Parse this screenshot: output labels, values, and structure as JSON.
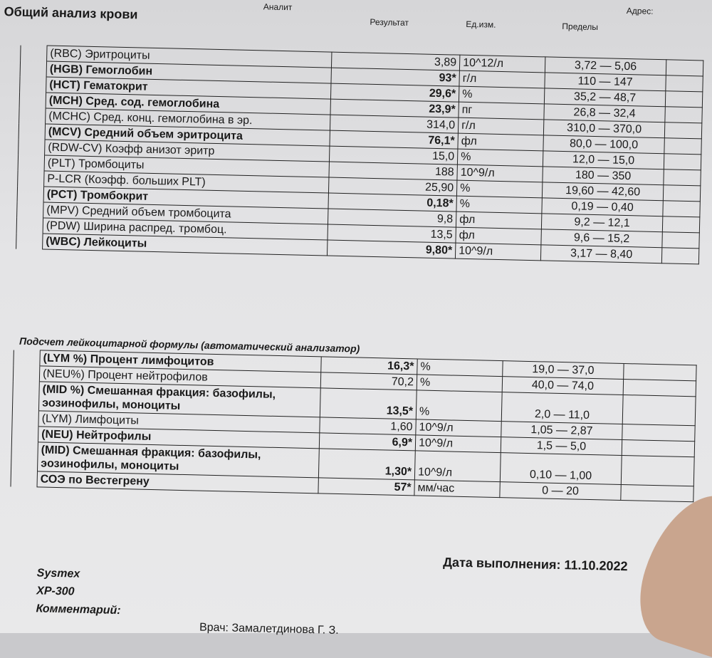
{
  "header": {
    "analyte": "Аналит",
    "result": "Результат",
    "unit": "Ед.изм.",
    "range": "Пределы",
    "address": "Адрес:"
  },
  "section_title": "Общий анализ крови",
  "cbc_rows": [
    {
      "label": "(RBC) Эритроциты",
      "result": "3,89",
      "unit": "10^12/л",
      "range": "3,72 — 5,06",
      "bold": false
    },
    {
      "label": "(HGB) Гемоглобин",
      "result": "93*",
      "unit": "г/л",
      "range": "110 — 147",
      "bold": true
    },
    {
      "label": "(HCT) Гематокрит",
      "result": "29,6*",
      "unit": "%",
      "range": "35,2 — 48,7",
      "bold": true
    },
    {
      "label": "(MCH) Сред. сод. гемоглобина",
      "result": "23,9*",
      "unit": "пг",
      "range": "26,8 — 32,4",
      "bold": true
    },
    {
      "label": "(MCHC) Сред. конц. гемоглобина в эр.",
      "result": "314,0",
      "unit": "г/л",
      "range": "310,0 — 370,0",
      "bold": false
    },
    {
      "label": "(MCV) Средний объем эритроцита",
      "result": "76,1*",
      "unit": "фл",
      "range": "80,0 — 100,0",
      "bold": true
    },
    {
      "label": "(RDW-CV) Коэфф анизот эритр",
      "result": "15,0",
      "unit": "%",
      "range": "12,0 — 15,0",
      "bold": false
    },
    {
      "label": "(PLT) Тромбоциты",
      "result": "188",
      "unit": "10^9/л",
      "range": "180 — 350",
      "bold": false
    },
    {
      "label": "P-LCR (Коэфф. больших PLT)",
      "result": "25,90",
      "unit": "%",
      "range": "19,60 — 42,60",
      "bold": false
    },
    {
      "label": "(PCT) Тромбокрит",
      "result": "0,18*",
      "unit": "%",
      "range": "0,19 — 0,40",
      "bold": true
    },
    {
      "label": "(MPV) Средний объем тромбоцита",
      "result": "9,8",
      "unit": "фл",
      "range": "9,2 — 12,1",
      "bold": false
    },
    {
      "label": "(PDW) Ширина распред. тромбоц.",
      "result": "13,5",
      "unit": "фл",
      "range": "9,6 — 15,2",
      "bold": false
    },
    {
      "label": "(WBC) Лейкоциты",
      "result": "9,80*",
      "unit": "10^9/л",
      "range": "3,17 — 8,40",
      "bold": true
    }
  ],
  "diff_title": "Подсчет лейкоцитарной формулы (автоматический анализатор)",
  "diff_rows": [
    {
      "label": "(LYM %) Процент лимфоцитов",
      "result": "16,3*",
      "unit": "%",
      "range": "19,0 — 37,0",
      "bold": true
    },
    {
      "label": "(NEU%) Процент нейтрофилов",
      "result": "70,2",
      "unit": "%",
      "range": "40,0 — 74,0",
      "bold": false
    },
    {
      "label": "(MID %) Смешанная фракция: базофилы, эозинофилы, моноциты",
      "result": "13,5*",
      "unit": "%",
      "range": "2,0 — 11,0",
      "bold": true
    },
    {
      "label": "(LYM) Лимфоциты",
      "result": "1,60",
      "unit": "10^9/л",
      "range": "1,05 — 2,87",
      "bold": false
    },
    {
      "label": "(NEU) Нейтрофилы",
      "result": "6,9*",
      "unit": "10^9/л",
      "range": "1,5 — 5,0",
      "bold": true
    },
    {
      "label": "(MID) Смешанная фракция: базофилы, эозинофилы, моноциты",
      "result": "1,30*",
      "unit": "10^9/л",
      "range": "0,10 — 1,00",
      "bold": true
    },
    {
      "label": "СОЭ по Вестегрену",
      "result": "57*",
      "unit": "мм/час",
      "range": "0 — 20",
      "bold": true
    }
  ],
  "date": "Дата выполнения: 11.10.2022",
  "analyzer_line1": "Sysmex",
  "analyzer_line2": "XP-300",
  "comment_label": "Комментарий:",
  "doctor": "Врач:  Замалетдинова Г. З."
}
